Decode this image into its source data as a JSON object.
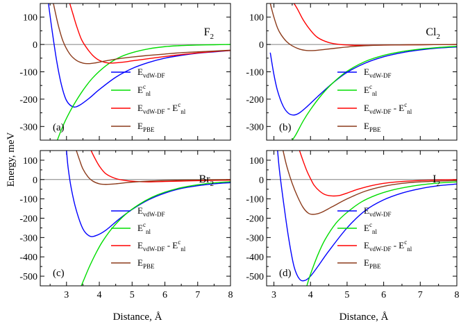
{
  "figure": {
    "xlabel": "Distance, Å",
    "ylabel": "Energy, meV"
  },
  "legend_entries": [
    {
      "key": "vdw",
      "base": "E",
      "sub": "vdW-DF",
      "color": "#0000ff"
    },
    {
      "key": "nl",
      "base": "E",
      "sup": "c",
      "sub": "nl",
      "color": "#00dd00"
    },
    {
      "key": "diff",
      "base": "E",
      "sub": "vdW-DF",
      "mid": " - E",
      "sup2": "c",
      "sub2": "nl",
      "color": "#ff0000"
    },
    {
      "key": "pbe",
      "base": "E",
      "sub": "PBE",
      "color": "#8b3a1a"
    }
  ],
  "chart_data": [
    {
      "type": "line",
      "panel": "(a)",
      "molecule": "F",
      "molecule_sub": "2",
      "xlim": [
        2.2,
        8
      ],
      "ylim": [
        -350,
        150
      ],
      "xticks": [
        3,
        4,
        5,
        6,
        7,
        8
      ],
      "yticks": [
        100,
        0,
        -100,
        -200,
        -300
      ],
      "xtick_labels_shown": false,
      "series": [
        {
          "key": "vdw",
          "x": [
            2.45,
            2.55,
            2.7,
            2.85,
            3.0,
            3.2,
            3.4,
            3.7,
            4.0,
            4.5,
            5.0,
            5.5,
            6.0,
            6.5,
            7.0,
            7.5,
            8.0
          ],
          "y": [
            150,
            60,
            -60,
            -150,
            -205,
            -228,
            -222,
            -196,
            -165,
            -120,
            -88,
            -66,
            -50,
            -40,
            -32,
            -27,
            -22
          ]
        },
        {
          "key": "nl",
          "x": [
            2.72,
            2.85,
            3.0,
            3.2,
            3.5,
            3.8,
            4.2,
            4.6,
            5.0,
            5.5,
            6.0,
            6.5,
            7.0,
            7.5,
            8.0
          ],
          "y": [
            -350,
            -310,
            -270,
            -225,
            -168,
            -122,
            -78,
            -48,
            -30,
            -16,
            -8,
            -4,
            -2,
            -1,
            0
          ]
        },
        {
          "key": "diff",
          "x": [
            3.1,
            3.2,
            3.3,
            3.45,
            3.6,
            3.8,
            4.0,
            4.3,
            4.7,
            5.0,
            5.5,
            6.0,
            6.5,
            7.0,
            7.5,
            8.0
          ],
          "y": [
            150,
            110,
            70,
            20,
            -10,
            -40,
            -58,
            -68,
            -65,
            -60,
            -52,
            -44,
            -37,
            -31,
            -26,
            -22
          ]
        },
        {
          "key": "pbe",
          "x": [
            2.6,
            2.75,
            2.9,
            3.1,
            3.3,
            3.5,
            3.7,
            3.9,
            4.2,
            4.6,
            5.0,
            5.5,
            6.0,
            6.5,
            7.0,
            7.5,
            8.0
          ],
          "y": [
            150,
            70,
            10,
            -35,
            -58,
            -68,
            -70,
            -67,
            -60,
            -52,
            -46,
            -40,
            -35,
            -30,
            -27,
            -24,
            -21
          ]
        }
      ]
    },
    {
      "type": "line",
      "panel": "(b)",
      "molecule": "Cl",
      "molecule_sub": "2",
      "xlim": [
        2.8,
        8
      ],
      "ylim": [
        -350,
        150
      ],
      "xticks": [
        3,
        4,
        5,
        6,
        7,
        8
      ],
      "yticks": [
        100,
        0,
        -100,
        -200,
        -300
      ],
      "xtick_labels_shown": false,
      "series": [
        {
          "key": "vdw",
          "x": [
            2.9,
            3.0,
            3.1,
            3.25,
            3.4,
            3.55,
            3.7,
            3.9,
            4.2,
            4.6,
            5.0,
            5.5,
            6.0,
            6.5,
            7.0,
            7.5,
            8.0
          ],
          "y": [
            -30,
            -110,
            -170,
            -225,
            -252,
            -258,
            -250,
            -228,
            -190,
            -142,
            -102,
            -68,
            -45,
            -30,
            -20,
            -13,
            -9
          ]
        },
        {
          "key": "nl",
          "x": [
            3.5,
            3.6,
            3.8,
            4.0,
            4.3,
            4.6,
            5.0,
            5.5,
            6.0,
            6.5,
            7.0,
            7.5,
            8.0
          ],
          "y": [
            -350,
            -330,
            -280,
            -238,
            -185,
            -142,
            -98,
            -62,
            -40,
            -26,
            -17,
            -11,
            -7
          ]
        },
        {
          "key": "diff",
          "x": [
            3.55,
            3.65,
            3.8,
            4.0,
            4.2,
            4.5,
            4.8,
            5.2,
            5.6,
            6.0,
            7.0,
            8.0
          ],
          "y": [
            150,
            128,
            90,
            52,
            25,
            7,
            0,
            -3,
            -3,
            -2,
            -1,
            0
          ]
        },
        {
          "key": "pbe",
          "x": [
            2.9,
            3.0,
            3.1,
            3.2,
            3.35,
            3.5,
            3.7,
            3.9,
            4.1,
            4.4,
            4.8,
            5.2,
            5.6,
            6.0,
            7.0,
            8.0
          ],
          "y": [
            150,
            100,
            60,
            35,
            10,
            -5,
            -17,
            -22,
            -22,
            -18,
            -12,
            -7,
            -4,
            -2,
            -1,
            0
          ]
        }
      ]
    },
    {
      "type": "line",
      "panel": "(c)",
      "molecule": "Br",
      "molecule_sub": "2",
      "xlim": [
        2.2,
        8
      ],
      "ylim": [
        -550,
        150
      ],
      "xticks": [
        3,
        4,
        5,
        6,
        7,
        8
      ],
      "yticks": [
        100,
        0,
        -100,
        -200,
        -300,
        -400,
        -500
      ],
      "xtick_labels_shown": true,
      "series": [
        {
          "key": "vdw",
          "x": [
            3.0,
            3.05,
            3.15,
            3.3,
            3.5,
            3.7,
            3.9,
            4.2,
            4.6,
            5.0,
            5.5,
            6.0,
            6.5,
            7.0,
            7.5,
            8.0
          ],
          "y": [
            150,
            60,
            -50,
            -160,
            -255,
            -292,
            -290,
            -262,
            -205,
            -155,
            -105,
            -70,
            -46,
            -32,
            -22,
            -16
          ]
        },
        {
          "key": "nl",
          "x": [
            3.45,
            3.55,
            3.7,
            3.9,
            4.1,
            4.4,
            4.8,
            5.2,
            5.6,
            6.0,
            6.5,
            7.0,
            7.5,
            8.0
          ],
          "y": [
            -550,
            -510,
            -450,
            -380,
            -320,
            -250,
            -180,
            -130,
            -92,
            -65,
            -42,
            -27,
            -17,
            -11
          ]
        },
        {
          "key": "diff",
          "x": [
            3.75,
            3.85,
            4.0,
            4.2,
            4.5,
            4.8,
            5.1,
            5.5,
            6.0,
            6.5,
            7.0,
            7.5,
            8.0
          ],
          "y": [
            150,
            115,
            70,
            30,
            5,
            -5,
            -10,
            -12,
            -10,
            -8,
            -6,
            -4,
            -3
          ]
        },
        {
          "key": "pbe",
          "x": [
            3.3,
            3.4,
            3.5,
            3.65,
            3.8,
            4.0,
            4.2,
            4.5,
            4.9,
            5.3,
            5.8,
            6.5,
            7.0,
            8.0
          ],
          "y": [
            150,
            100,
            55,
            15,
            -8,
            -22,
            -25,
            -22,
            -15,
            -10,
            -6,
            -3,
            -2,
            0
          ]
        }
      ]
    },
    {
      "type": "line",
      "panel": "(d)",
      "molecule": "I",
      "molecule_sub": "2",
      "xlim": [
        2.8,
        8
      ],
      "ylim": [
        -550,
        150
      ],
      "xticks": [
        3,
        4,
        5,
        6,
        7,
        8
      ],
      "yticks": [
        100,
        0,
        -100,
        -200,
        -300,
        -400,
        -500
      ],
      "xtick_labels_shown": true,
      "series": [
        {
          "key": "vdw",
          "x": [
            3.1,
            3.15,
            3.25,
            3.4,
            3.55,
            3.7,
            3.85,
            4.0,
            4.2,
            4.5,
            5.0,
            5.5,
            6.0,
            6.5,
            7.0,
            7.5,
            8.0
          ],
          "y": [
            150,
            50,
            -100,
            -300,
            -450,
            -515,
            -522,
            -500,
            -450,
            -370,
            -250,
            -160,
            -105,
            -70,
            -47,
            -32,
            -23
          ]
        },
        {
          "key": "nl",
          "x": [
            3.9,
            4.0,
            4.2,
            4.4,
            4.7,
            5.0,
            5.4,
            5.8,
            6.2,
            6.6,
            7.0,
            7.5,
            8.0
          ],
          "y": [
            -550,
            -490,
            -390,
            -310,
            -225,
            -170,
            -115,
            -80,
            -56,
            -40,
            -28,
            -18,
            -12
          ]
        },
        {
          "key": "diff",
          "x": [
            3.7,
            3.8,
            3.9,
            4.0,
            4.1,
            4.25,
            4.4,
            4.6,
            4.8,
            5.0,
            5.3,
            5.7,
            6.2,
            7.0,
            8.0
          ],
          "y": [
            150,
            95,
            45,
            5,
            -30,
            -60,
            -78,
            -85,
            -82,
            -70,
            -50,
            -30,
            -15,
            -5,
            0
          ]
        },
        {
          "key": "pbe",
          "x": [
            3.25,
            3.35,
            3.5,
            3.65,
            3.8,
            3.95,
            4.1,
            4.3,
            4.6,
            5.0,
            5.5,
            6.0,
            6.5,
            7.0,
            8.0
          ],
          "y": [
            150,
            70,
            -20,
            -90,
            -145,
            -175,
            -180,
            -170,
            -140,
            -100,
            -60,
            -35,
            -20,
            -12,
            -5
          ]
        }
      ]
    }
  ]
}
